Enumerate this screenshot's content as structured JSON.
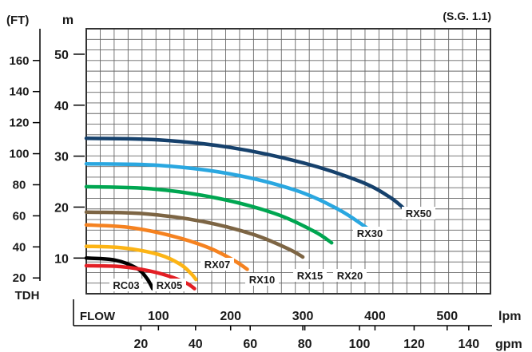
{
  "chart_data": {
    "type": "line",
    "title": "",
    "note": "(S.G. 1.1)",
    "ylabel_ft": "(FT)",
    "ylabel_m": "m",
    "tdh_label": "TDH",
    "xlabel_lpm": "lpm",
    "xlabel_gpm": "gpm",
    "flow_label": "FLOW",
    "x_lpm_ticks": [
      "100",
      "200",
      "300",
      "400",
      "500"
    ],
    "x_lpm_tick_values": [
      100,
      200,
      300,
      400,
      500
    ],
    "x_gpm_ticks": [
      "20",
      "40",
      "60",
      "80",
      "100",
      "120",
      "140"
    ],
    "x_gpm_tick_values": [
      20,
      40,
      60,
      80,
      100,
      120,
      140
    ],
    "y_m_ticks": [
      "10",
      "20",
      "30",
      "40",
      "50"
    ],
    "y_m_tick_values": [
      10,
      20,
      30,
      40,
      50
    ],
    "y_ft_ticks": [
      "20",
      "40",
      "60",
      "80",
      "100",
      "120",
      "140",
      "160"
    ],
    "y_ft_tick_values": [
      20,
      40,
      60,
      80,
      100,
      120,
      140,
      160
    ],
    "xlim_lpm": [
      0,
      560
    ],
    "ylim_m": [
      3,
      55
    ],
    "grid": true,
    "series": [
      {
        "name": "RC03",
        "color": "#000000",
        "x_lpm": [
          0,
          40,
          70,
          84,
          92
        ],
        "y_m": [
          10,
          9.6,
          8,
          6,
          4
        ]
      },
      {
        "name": "RX05",
        "color": "#e31e24",
        "x_lpm": [
          0,
          50,
          90,
          120,
          140,
          150
        ],
        "y_m": [
          8.5,
          8.3,
          7.4,
          6.2,
          5,
          4
        ]
      },
      {
        "name": "RX07",
        "color": "#fcb415",
        "x_lpm": [
          0,
          50,
          100,
          130,
          145,
          152
        ],
        "y_m": [
          12.3,
          12,
          10.7,
          8.8,
          7,
          5.8
        ]
      },
      {
        "name": "RX10",
        "color": "#f58220",
        "x_lpm": [
          0,
          60,
          120,
          170,
          205,
          223
        ],
        "y_m": [
          16.5,
          16,
          14.3,
          12,
          9.5,
          7.8
        ]
      },
      {
        "name": "RX15",
        "color": "#7d6544",
        "x_lpm": [
          0,
          80,
          160,
          230,
          280,
          300
        ],
        "y_m": [
          19,
          18.7,
          17.2,
          14.7,
          11.8,
          10.2
        ]
      },
      {
        "name": "RX20",
        "color": "#00a651",
        "x_lpm": [
          0,
          90,
          180,
          260,
          315,
          340
        ],
        "y_m": [
          24,
          23.6,
          21.8,
          18.8,
          15.3,
          13
        ]
      },
      {
        "name": "RX30",
        "color": "#2aa7e0",
        "x_lpm": [
          0,
          100,
          200,
          290,
          350,
          390
        ],
        "y_m": [
          28.5,
          28.2,
          26.5,
          23.3,
          19.5,
          15.8
        ]
      },
      {
        "name": "RX50",
        "color": "#16416c",
        "x_lpm": [
          0,
          100,
          200,
          300,
          380,
          420,
          442
        ],
        "y_m": [
          33.5,
          33.2,
          31.7,
          28.7,
          25,
          22,
          19.5
        ]
      }
    ]
  }
}
